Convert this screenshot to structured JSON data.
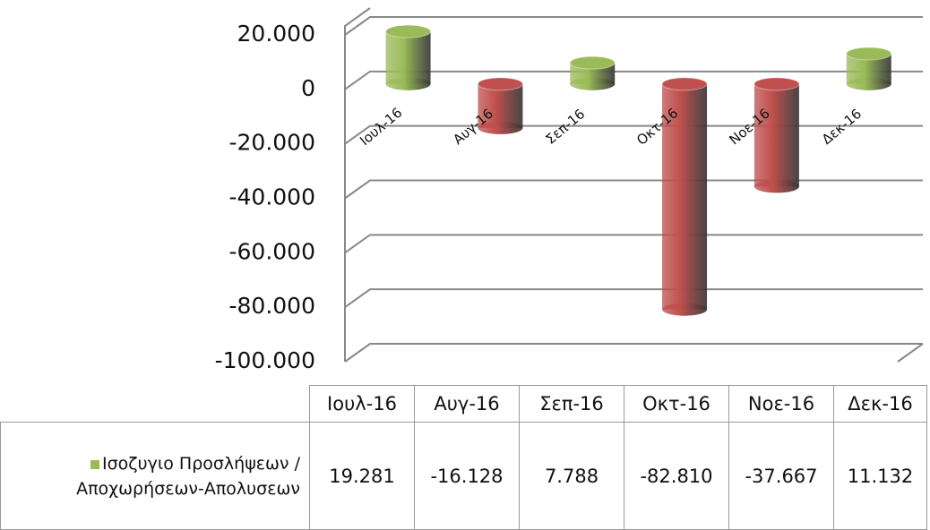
{
  "chart_data": {
    "type": "bar3d",
    "categories": [
      "Ιουλ-16",
      "Αυγ-16",
      "Σεπ-16",
      "Οκτ-16",
      "Νοε-16",
      "Δεκ-16"
    ],
    "series": [
      {
        "name": "Ισοζυγιο Προσλήψεων / Αποχωρήσεων-Απολυσεων",
        "color": "#9bbb59",
        "negative_color": "#c0504d",
        "values": [
          19281,
          -16128,
          7788,
          -82810,
          -37667,
          11132
        ],
        "value_labels": [
          "19.281",
          "-16.128",
          "7.788",
          "-82.810",
          "-37.667",
          "11.132"
        ]
      }
    ],
    "ylim": [
      -100000,
      20000
    ],
    "yticks": [
      {
        "value": 20000,
        "label": "20.000"
      },
      0,
      {
        "value": -20000,
        "label": "-20.000"
      },
      {
        "value": -40000,
        "label": "-40.000"
      },
      {
        "value": -60000,
        "label": "-60.000"
      },
      {
        "value": -80000,
        "label": "-80.000"
      },
      {
        "value": -100000,
        "label": "-100.000"
      }
    ],
    "grid": true
  }
}
